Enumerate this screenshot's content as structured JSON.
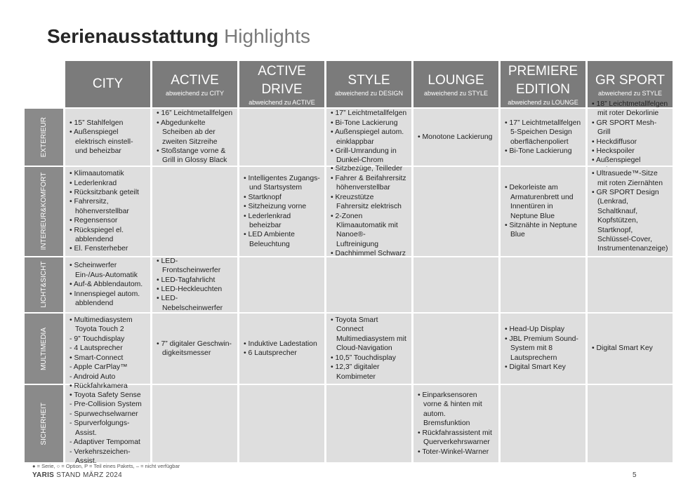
{
  "header": {
    "title_bold": "Serienausstattung",
    "title_light": "Highlights"
  },
  "table": {
    "columns": [
      {
        "name": "CITY"
      },
      {
        "name": "ACTIVE",
        "subtitle": "abweichend zu CITY"
      },
      {
        "name": "ACTIVE DRIVE",
        "subtitle": "abweichend zu ACTIVE"
      },
      {
        "name": "STYLE",
        "subtitle": "abweichend zu DESIGN"
      },
      {
        "name": "LOUNGE",
        "subtitle": "abweichend zu STYLE"
      },
      {
        "name": "PREMIERE EDITION",
        "subtitle": "abweichend zu LOUNGE"
      },
      {
        "name": "GR SPORT",
        "subtitle": "abweichend zu STYLE"
      }
    ],
    "rows": [
      {
        "label": [
          "EXTERIEUR"
        ],
        "cells": [
          [
            "• 15” Stahlfelgen",
            "• Außenspiegel elektrisch einstell- und beheizbar"
          ],
          [
            "• 16” Leichtmetallfelgen",
            "• Abgedunkelte Scheiben ab der zweiten Sitzreihe",
            "• Stoßstange vorne & Grill in Glossy Black"
          ],
          [],
          [
            "• 17” Leichtmetallfelgen",
            "• Bi-Tone Lackierung",
            "• Außenspiegel autom. einklappbar",
            "• Grill-Umrandung in Dunkel-Chrom"
          ],
          [
            "• Monotone Lackierung"
          ],
          [
            "• 17” Leichtmetallfelgen 5-Speichen Design oberflächenpoliert",
            "• Bi-Tone Lackierung"
          ],
          [
            "• 18” Leichtmetallfelgen mit roter Dekorlinie",
            "• GR SPORT Mesh-Grill",
            "• Heckdiffusor",
            "• Heckspoiler",
            "• Außenspiegel Schwarz"
          ]
        ]
      },
      {
        "label": [
          "INTERIEUR",
          "&",
          "KOMFORT"
        ],
        "cells": [
          [
            "• Klimaautomatik",
            "• Lederlenkrad",
            "• Rücksitzbank geteilt",
            "• Fahrersitz, höhenverstellbar",
            "• Regensensor",
            "• Rückspiegel el. abblendend",
            "• El. Fensterheber"
          ],
          [],
          [
            "• Intelligentes Zugangs- und Startsystem",
            "• Startknopf",
            "• Sitzheizung vorne",
            "• Lederlenkrad beheizbar",
            "• LED Ambiente Beleuchtung"
          ],
          [
            "• Sitzbezüge, Teilleder",
            "• Fahrer & Beifahrersitz höhenverstellbar",
            "• Kreuzstütze Fahrersitz elektrisch",
            "• 2-Zonen Klimaautomatik mit Nanoe®-Luftreinigung",
            "• Dachhimmel Schwarz"
          ],
          [],
          [
            "• Dekorleiste am Armaturenbrett und Innentüren in Neptune Blue",
            "• Sitznähte in Neptune Blue"
          ],
          [
            "• Ultrasuede™-Sitze mit roten Ziernähten",
            "• GR SPORT Design (Lenkrad, Schaltknauf, Kopfstützen, Startknopf, Schlüssel-Cover, Instrumentenanzeige)"
          ]
        ]
      },
      {
        "label": [
          "LICHT",
          "&",
          "SICHT"
        ],
        "cells": [
          [
            "• Scheinwerfer Ein-/Aus-Automatik",
            "• Auf-& Abblendautom.",
            "• Innenspiegel autom. abblendend"
          ],
          [
            "• LED-Frontscheinwerfer",
            "• LED-Tagfahrlicht",
            "• LED-Heckleuchten",
            "• LED-Nebelscheinwerfer"
          ],
          [],
          [],
          [],
          [],
          []
        ]
      },
      {
        "label": [
          "MULTIMEDIA"
        ],
        "cells": [
          [
            "• Multimediasystem Toyota Touch 2",
            "- 9” Touchdisplay",
            "- 4 Lautsprecher",
            "• Smart-Connect",
            "- Apple CarPlay™",
            "- Android Auto"
          ],
          [
            "• 7” digitaler Geschwin-digkeitsmesser"
          ],
          [
            "• Induktive Ladestation",
            "• 6 Lautsprecher"
          ],
          [
            "• Toyota Smart Connect Multimediasystem mit Cloud-Navigation",
            "• 10,5” Touchdisplay",
            "• 12,3” digitaler Kombimeter"
          ],
          [],
          [
            "• Head-Up Display",
            "• JBL Premium Sound-System mit 8 Lautsprechern",
            "• Digital Smart Key"
          ],
          [
            "• Digital Smart Key"
          ]
        ]
      },
      {
        "label": [
          "SICHERHEIT"
        ],
        "cells": [
          [
            "• Rückfahrkamera",
            "• Toyota Safety Sense",
            "- Pre-Collision System",
            "- Spurwechselwarner",
            "- Spurverfolgungs-Assist.",
            "- Adaptiver Tempomat",
            "- Verkehrszeichen-Assist."
          ],
          [],
          [],
          [],
          [
            "• Einparksensoren vorne & hinten mit autom. Bremsfunktion",
            "• Rückfahrassistent mit Querverkehrswarner",
            "• Toter-Winkel-Warner"
          ],
          [],
          []
        ]
      }
    ]
  },
  "footer": {
    "legend": "● = Serie, ○ = Option, P = Teil eines Pakets, – = nicht verfügbar",
    "model": "YARIS",
    "stand": "STAND MÄRZ 2024",
    "page": "5"
  }
}
